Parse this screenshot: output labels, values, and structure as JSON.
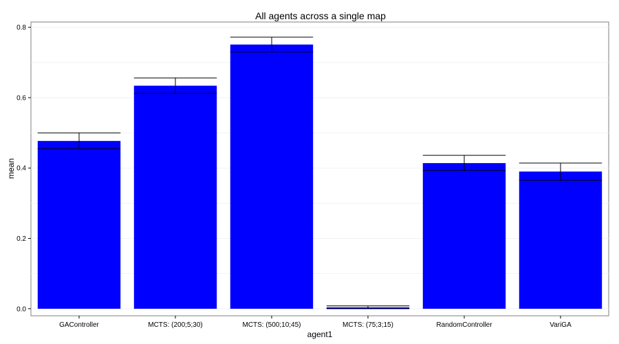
{
  "chart_data": {
    "type": "bar",
    "title": "All agents across a single map",
    "xlabel": "agent1",
    "ylabel": "mean",
    "categories": [
      "GAController",
      "MCTS: (200;5;30)",
      "MCTS: (500;10;45)",
      "MCTS: (75;3;15)",
      "RandomController",
      "VariGA"
    ],
    "values": [
      0.477,
      0.634,
      0.751,
      0.004,
      0.414,
      0.39
    ],
    "error_low": [
      0.455,
      0.612,
      0.73,
      0.0,
      0.393,
      0.365
    ],
    "error_high": [
      0.5,
      0.656,
      0.772,
      0.008,
      0.436,
      0.414
    ],
    "ylim": [
      -0.02,
      0.815
    ],
    "yticks": [
      0.0,
      0.2,
      0.4,
      0.6,
      0.8
    ],
    "ytick_labels": [
      "0.0",
      "0.2",
      "0.4",
      "0.6",
      "0.8"
    ],
    "grid": true,
    "bar_color": "#0000ff",
    "error_color": "#000000",
    "legend": "none"
  }
}
